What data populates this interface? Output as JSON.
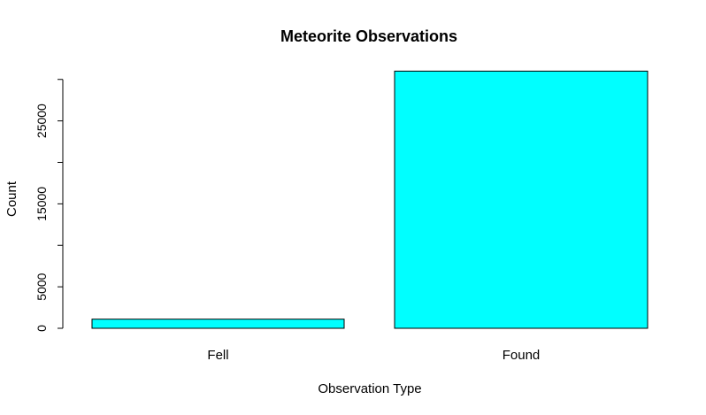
{
  "chart_data": {
    "type": "bar",
    "title": "Meteorite Observations",
    "xlabel": "Observation Type",
    "ylabel": "Count",
    "categories": [
      "Fell",
      "Found"
    ],
    "values": [
      1100,
      31000
    ],
    "ylim": [
      0,
      30000
    ],
    "yticks": [
      0,
      5000,
      15000,
      25000
    ],
    "bar_fill": "#00ffff",
    "bar_stroke": "#000000",
    "grid": false,
    "legend": "none"
  }
}
